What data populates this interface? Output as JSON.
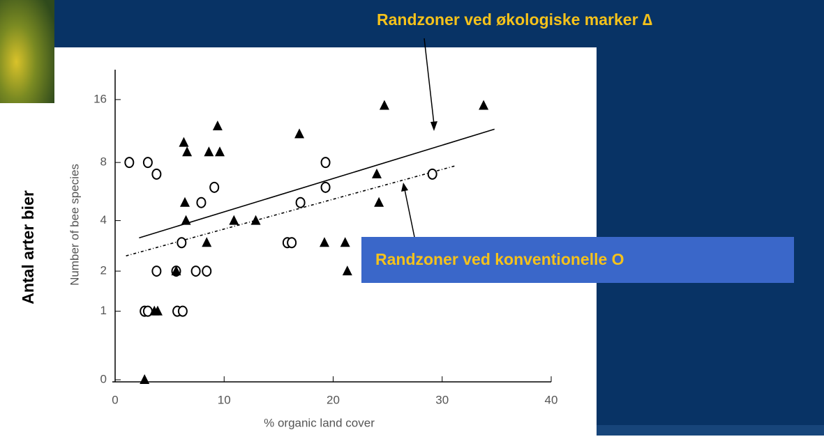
{
  "chart_data": {
    "type": "scatter",
    "xlabel": "% organic land cover",
    "ylabel": "Number of bee species",
    "xlim": [
      0,
      40
    ],
    "xticks": [
      0,
      10,
      20,
      30,
      40
    ],
    "ylim": [
      0,
      22
    ],
    "yticks": [
      0,
      1,
      2,
      4,
      8,
      16
    ],
    "yscale": "log1p",
    "series": [
      {
        "marker": "circle",
        "color": "#000000",
        "x": [
          1.3,
          3.0,
          3.8,
          9.1,
          7.9,
          6.1,
          3.8,
          5.6,
          7.4,
          8.4,
          2.7,
          3.0,
          5.7,
          6.2,
          15.8,
          16.2,
          17.0,
          19.3,
          19.3,
          29.1
        ],
        "values": [
          8,
          8,
          7,
          6,
          5,
          3,
          2,
          2,
          2,
          2,
          1,
          1,
          1,
          1,
          3,
          3,
          5,
          8,
          6,
          7
        ]
      },
      {
        "marker": "triangle",
        "color": "#000000",
        "x": [
          2.7,
          3.6,
          3.9,
          5.6,
          6.3,
          6.6,
          6.4,
          6.5,
          8.4,
          8.6,
          9.4,
          9.6,
          10.9,
          12.9,
          16.9,
          19.2,
          21.1,
          21.3,
          24.0,
          24.2,
          24.7,
          33.8
        ],
        "values": [
          0,
          1,
          1,
          2,
          10,
          9,
          5,
          4,
          3,
          9,
          12,
          9,
          4,
          4,
          11,
          3,
          3,
          2,
          7,
          5,
          15,
          15
        ]
      }
    ],
    "fits": [
      {
        "dash": "none",
        "x": [
          2.2,
          34.8
        ],
        "values": [
          3.2,
          11.6
        ]
      },
      {
        "dash": "4 3 1 3",
        "x": [
          1.0,
          31.2
        ],
        "values": [
          2.5,
          7.7
        ]
      }
    ],
    "annotations": [
      "Randzoner ved økologiske marker ∆",
      "Randzoner ved konventionelle O",
      "Antal arter bier"
    ]
  }
}
